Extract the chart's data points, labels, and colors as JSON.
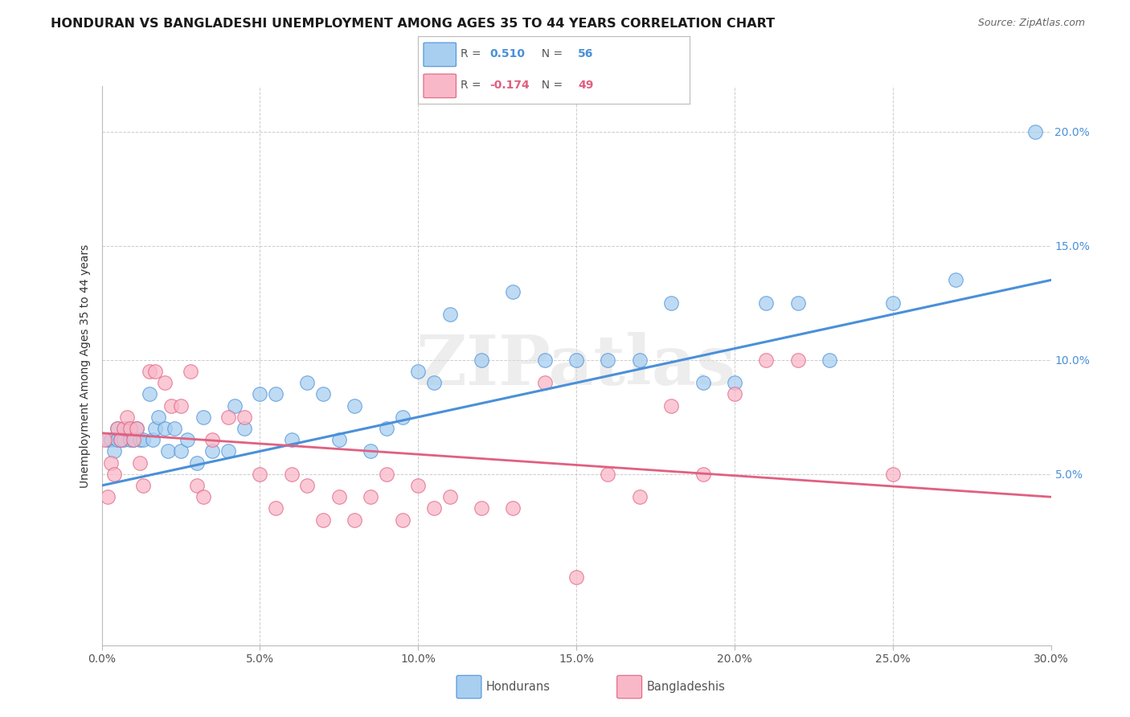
{
  "title": "HONDURAN VS BANGLADESHI UNEMPLOYMENT AMONG AGES 35 TO 44 YEARS CORRELATION CHART",
  "source": "Source: ZipAtlas.com",
  "ylabel": "Unemployment Among Ages 35 to 44 years",
  "xlim": [
    0.0,
    30.0
  ],
  "ylim": [
    -2.5,
    22.0
  ],
  "xlabel_vals": [
    0.0,
    5.0,
    10.0,
    15.0,
    20.0,
    25.0,
    30.0
  ],
  "right_ytick_vals": [
    5.0,
    10.0,
    15.0,
    20.0
  ],
  "honduran_R": 0.51,
  "honduran_N": 56,
  "bangladeshi_R": -0.174,
  "bangladeshi_N": 49,
  "honduran_color": "#A8CFF0",
  "bangladeshi_color": "#F9B8C8",
  "trend_honduran_color": "#4A90D9",
  "trend_bangladeshi_color": "#E06080",
  "honduran_x": [
    0.2,
    0.3,
    0.4,
    0.5,
    0.5,
    0.6,
    0.7,
    0.8,
    0.9,
    1.0,
    1.1,
    1.2,
    1.3,
    1.5,
    1.6,
    1.7,
    1.8,
    2.0,
    2.1,
    2.3,
    2.5,
    2.7,
    3.0,
    3.2,
    3.5,
    4.0,
    4.2,
    4.5,
    5.0,
    5.5,
    6.0,
    6.5,
    7.0,
    7.5,
    8.0,
    8.5,
    9.0,
    9.5,
    10.0,
    10.5,
    11.0,
    12.0,
    13.0,
    14.0,
    15.0,
    16.0,
    17.0,
    18.0,
    19.0,
    20.0,
    21.0,
    22.0,
    23.0,
    25.0,
    27.0,
    29.5
  ],
  "honduran_y": [
    6.5,
    6.5,
    6.0,
    6.5,
    7.0,
    6.5,
    6.5,
    7.0,
    6.5,
    6.5,
    7.0,
    6.5,
    6.5,
    8.5,
    6.5,
    7.0,
    7.5,
    7.0,
    6.0,
    7.0,
    6.0,
    6.5,
    5.5,
    7.5,
    6.0,
    6.0,
    8.0,
    7.0,
    8.5,
    8.5,
    6.5,
    9.0,
    8.5,
    6.5,
    8.0,
    6.0,
    7.0,
    7.5,
    9.5,
    9.0,
    12.0,
    10.0,
    13.0,
    10.0,
    10.0,
    10.0,
    10.0,
    12.5,
    9.0,
    9.0,
    12.5,
    12.5,
    10.0,
    12.5,
    13.5,
    20.0
  ],
  "bangladeshi_x": [
    0.1,
    0.2,
    0.3,
    0.4,
    0.5,
    0.6,
    0.7,
    0.8,
    0.9,
    1.0,
    1.1,
    1.2,
    1.3,
    1.5,
    1.7,
    2.0,
    2.2,
    2.5,
    2.8,
    3.0,
    3.2,
    3.5,
    4.0,
    4.5,
    5.0,
    5.5,
    6.0,
    6.5,
    7.0,
    7.5,
    8.0,
    8.5,
    9.0,
    9.5,
    10.0,
    10.5,
    11.0,
    12.0,
    13.0,
    14.0,
    15.0,
    16.0,
    17.0,
    18.0,
    19.0,
    20.0,
    21.0,
    22.0,
    25.0
  ],
  "bangladeshi_y": [
    6.5,
    4.0,
    5.5,
    5.0,
    7.0,
    6.5,
    7.0,
    7.5,
    7.0,
    6.5,
    7.0,
    5.5,
    4.5,
    9.5,
    9.5,
    9.0,
    8.0,
    8.0,
    9.5,
    4.5,
    4.0,
    6.5,
    7.5,
    7.5,
    5.0,
    3.5,
    5.0,
    4.5,
    3.0,
    4.0,
    3.0,
    4.0,
    5.0,
    3.0,
    4.5,
    3.5,
    4.0,
    3.5,
    3.5,
    9.0,
    0.5,
    5.0,
    4.0,
    8.0,
    5.0,
    8.5,
    10.0,
    10.0,
    5.0
  ],
  "trend_honduran_x0": 0.0,
  "trend_honduran_x1": 30.0,
  "trend_honduran_y0": 4.5,
  "trend_honduran_y1": 13.5,
  "trend_bangladeshi_x0": 0.0,
  "trend_bangladeshi_x1": 30.0,
  "trend_bangladeshi_y0": 6.8,
  "trend_bangladeshi_y1": 4.0,
  "watermark": "ZIPatlas",
  "background_color": "#FFFFFF",
  "grid_color": "#CCCCCC",
  "title_fontsize": 11.5,
  "source_fontsize": 9,
  "axis_label_fontsize": 10,
  "tick_fontsize": 10
}
